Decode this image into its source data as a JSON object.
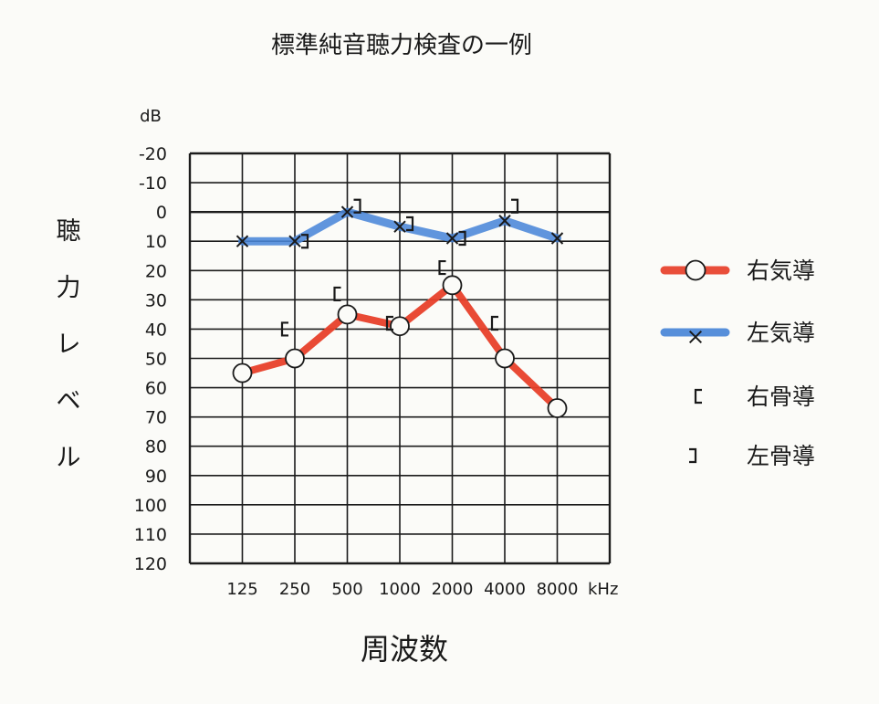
{
  "chart_data": {
    "type": "line",
    "title": "標準純音聴力検査の一例",
    "xlabel": "周波数",
    "ylabel": "聴力レベル",
    "y_unit": "dB",
    "x_unit": "kHz",
    "categories": [
      "125",
      "250",
      "500",
      "1000",
      "2000",
      "4000",
      "8000"
    ],
    "y_ticks": [
      -20,
      -10,
      0,
      10,
      20,
      30,
      40,
      50,
      60,
      70,
      80,
      90,
      100,
      110,
      120
    ],
    "ylim": [
      -20,
      120
    ],
    "y_inverted": true,
    "grid": true,
    "legend_position": "right",
    "series": [
      {
        "name": "右気導",
        "marker": "circle",
        "color": "#e8402a",
        "values": [
          55,
          50,
          35,
          39,
          25,
          50,
          67
        ]
      },
      {
        "name": "左気導",
        "marker": "x",
        "color": "#4a86d8",
        "values": [
          10,
          10,
          0,
          5,
          9,
          3,
          9
        ]
      },
      {
        "name": "右骨導",
        "marker": "bracket-left",
        "color": "#1a1a1a",
        "values": [
          null,
          40,
          28,
          38,
          19,
          38,
          null
        ]
      },
      {
        "name": "左骨導",
        "marker": "bracket-right",
        "color": "#1a1a1a",
        "values": [
          null,
          10,
          -2,
          4,
          9,
          -2,
          null
        ]
      }
    ]
  }
}
